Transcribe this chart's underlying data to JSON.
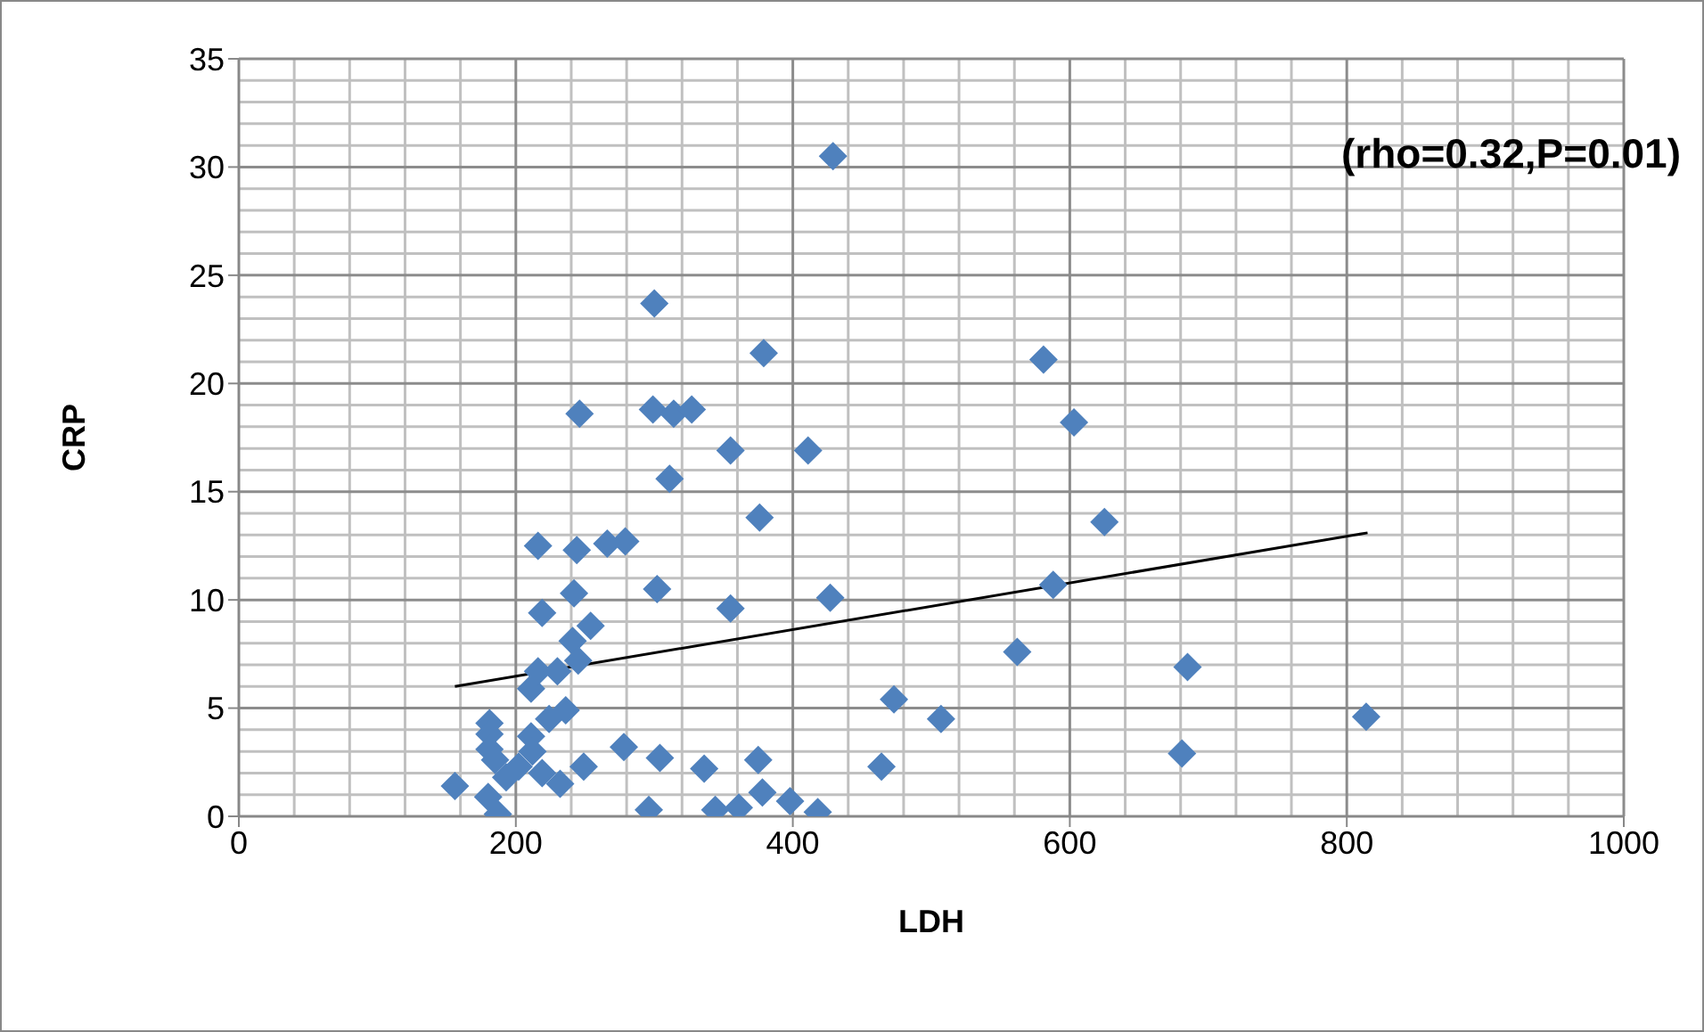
{
  "chart_data": {
    "type": "scatter",
    "xlabel": "LDH",
    "ylabel": "CRP",
    "annotations": [
      "(rho=0.32,P=0.01)"
    ],
    "xlim": [
      0,
      1000
    ],
    "xticks": [
      0,
      200,
      400,
      600,
      800,
      1000
    ],
    "ylim": [
      0,
      35
    ],
    "yticks": [
      0,
      5,
      10,
      15,
      20,
      25,
      30,
      35
    ],
    "grid": true,
    "marker": "diamond",
    "series": [
      {
        "color": "#4f81bd",
        "x": [
          156,
          181,
          181,
          181,
          185,
          180,
          187,
          193,
          202,
          211,
          212,
          211,
          216,
          216,
          219,
          224,
          236,
          230,
          241,
          245,
          254,
          242,
          244,
          266,
          279,
          302,
          219,
          232,
          249,
          278,
          304,
          296,
          300,
          379,
          246,
          299,
          314,
          327,
          355,
          411,
          311,
          376,
          355,
          427,
          336,
          375,
          378,
          344,
          361,
          398,
          418,
          464,
          429,
          581,
          603,
          625,
          588,
          562,
          685,
          681,
          814,
          473,
          507
        ],
        "values": [
          1.4,
          4.3,
          3.8,
          3.1,
          2.6,
          0.9,
          0.1,
          1.8,
          2.3,
          3.7,
          3.0,
          5.9,
          6.7,
          12.5,
          9.4,
          4.5,
          4.9,
          6.7,
          8.1,
          7.2,
          8.8,
          10.3,
          12.3,
          12.6,
          12.7,
          10.5,
          2.0,
          1.5,
          2.3,
          3.2,
          2.7,
          0.3,
          23.7,
          21.4,
          18.6,
          18.8,
          18.6,
          18.8,
          16.9,
          16.9,
          15.6,
          13.8,
          9.6,
          10.1,
          2.2,
          2.6,
          1.1,
          0.3,
          0.4,
          0.7,
          0.2,
          2.3,
          30.5,
          21.1,
          18.2,
          13.6,
          10.7,
          7.6,
          6.9,
          2.9,
          4.6,
          5.4,
          4.5
        ]
      },
      {
        "type": "line",
        "color": "#000000",
        "marker": "none",
        "x": [
          156,
          815
        ],
        "values": [
          6.0,
          13.1
        ]
      }
    ]
  }
}
